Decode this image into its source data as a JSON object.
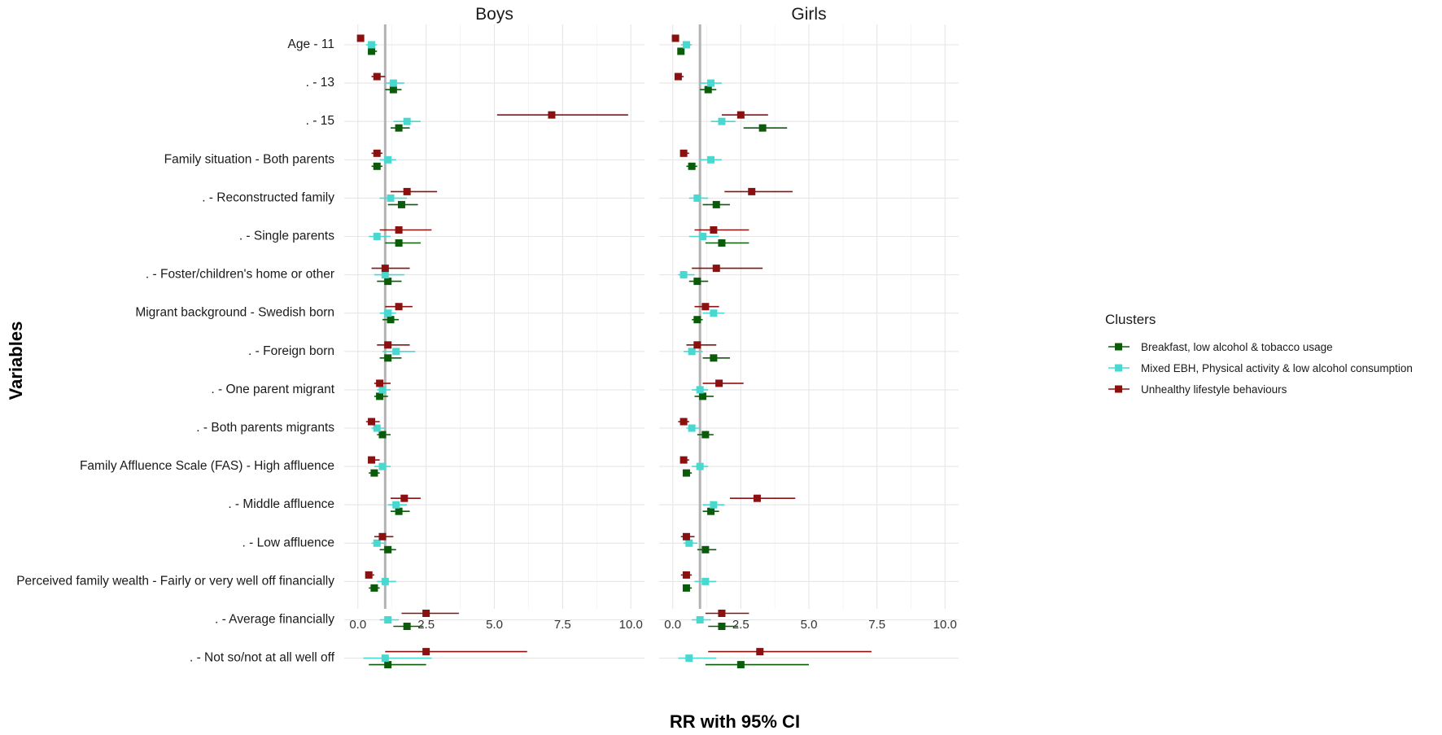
{
  "chart_data": {
    "type": "forest",
    "xlabel": "RR with 95% CI",
    "ylabel": "Variables",
    "xlim": [
      -0.5,
      10.5
    ],
    "xticks": [
      0.0,
      2.5,
      5.0,
      7.5,
      10.0
    ],
    "xtick_labels": [
      "0.0",
      "2.5",
      "5.0",
      "7.5",
      "10.0"
    ],
    "reference_line": 1,
    "grid": true,
    "legend_position": "right",
    "legend_title": "Clusters",
    "series": [
      {
        "key": "breakfast",
        "name": "Breakfast, low alcohol & tobacco usage",
        "color": "#0a5c0a"
      },
      {
        "key": "mixed",
        "name": "Mixed EBH, Physical activity & low alcohol consumption",
        "color": "#48d8d0"
      },
      {
        "key": "unhealthy",
        "name": "Unhealthy lifestyle behaviours",
        "color": "#8b1010"
      }
    ],
    "rows": [
      {
        "label": "Age  -  11"
      },
      {
        "label": ".  -  13"
      },
      {
        "label": ".  -  15"
      },
      {
        "label": "Family situation  -  Both parents"
      },
      {
        "label": ".  -  Reconstructed family"
      },
      {
        "label": ".  -  Single parents"
      },
      {
        "label": ".  -  Foster/children's home or other"
      },
      {
        "label": "Migrant background  -  Swedish born"
      },
      {
        "label": ".  -  Foreign born"
      },
      {
        "label": ".  -  One parent migrant"
      },
      {
        "label": ".  -  Both parents migrants"
      },
      {
        "label": "Family  Affluence Scale (FAS)  -  High affluence"
      },
      {
        "label": ".  -  Middle affluence"
      },
      {
        "label": ".  -  Low affluence"
      },
      {
        "label": "Perceived family wealth  -  Fairly or very well off financially"
      },
      {
        "label": ".  -  Average financially"
      },
      {
        "label": ".  -  Not  so/not at all well off"
      }
    ],
    "panels": [
      {
        "title": "Boys",
        "estimates": {
          "unhealthy": [
            [
              0.1,
              0.0,
              0.2
            ],
            [
              0.7,
              0.5,
              1.0
            ],
            [
              7.1,
              5.1,
              9.9
            ],
            [
              0.7,
              0.5,
              0.9
            ],
            [
              1.8,
              1.2,
              2.9
            ],
            [
              1.5,
              0.8,
              2.7
            ],
            [
              1.0,
              0.5,
              1.9
            ],
            [
              1.5,
              1.0,
              2.0
            ],
            [
              1.1,
              0.7,
              1.9
            ],
            [
              0.8,
              0.6,
              1.2
            ],
            [
              0.5,
              0.3,
              0.8
            ],
            [
              0.5,
              0.4,
              0.8
            ],
            [
              1.7,
              1.2,
              2.3
            ],
            [
              0.9,
              0.6,
              1.3
            ],
            [
              0.4,
              0.3,
              0.6
            ],
            [
              2.5,
              1.6,
              3.7
            ],
            [
              2.5,
              1.0,
              6.2
            ]
          ],
          "mixed": [
            [
              0.5,
              0.3,
              0.7
            ],
            [
              1.3,
              1.0,
              1.7
            ],
            [
              1.8,
              1.3,
              2.3
            ],
            [
              1.1,
              0.8,
              1.4
            ],
            [
              1.2,
              0.8,
              1.8
            ],
            [
              0.7,
              0.4,
              1.2
            ],
            [
              1.0,
              0.6,
              1.7
            ],
            [
              1.1,
              0.8,
              1.4
            ],
            [
              1.4,
              0.9,
              2.1
            ],
            [
              0.9,
              0.7,
              1.2
            ],
            [
              0.7,
              0.5,
              1.0
            ],
            [
              0.9,
              0.6,
              1.2
            ],
            [
              1.4,
              1.1,
              1.8
            ],
            [
              0.7,
              0.5,
              1.0
            ],
            [
              1.0,
              0.7,
              1.4
            ],
            [
              1.1,
              0.8,
              1.5
            ],
            [
              1.0,
              0.2,
              2.7
            ]
          ],
          "breakfast": [
            [
              0.5,
              0.4,
              0.7
            ],
            [
              1.3,
              1.0,
              1.6
            ],
            [
              1.5,
              1.2,
              1.9
            ],
            [
              0.7,
              0.5,
              0.9
            ],
            [
              1.6,
              1.1,
              2.2
            ],
            [
              1.5,
              1.0,
              2.3
            ],
            [
              1.1,
              0.7,
              1.6
            ],
            [
              1.2,
              0.9,
              1.5
            ],
            [
              1.1,
              0.8,
              1.6
            ],
            [
              0.8,
              0.6,
              1.1
            ],
            [
              0.9,
              0.7,
              1.2
            ],
            [
              0.6,
              0.4,
              0.8
            ],
            [
              1.5,
              1.2,
              1.9
            ],
            [
              1.1,
              0.8,
              1.4
            ],
            [
              0.6,
              0.4,
              0.8
            ],
            [
              1.8,
              1.3,
              2.4
            ],
            [
              1.1,
              0.4,
              2.5
            ]
          ]
        }
      },
      {
        "title": "Girls",
        "estimates": {
          "unhealthy": [
            [
              0.1,
              0.0,
              0.2
            ],
            [
              0.2,
              0.1,
              0.4
            ],
            [
              2.5,
              1.8,
              3.5
            ],
            [
              0.4,
              0.3,
              0.6
            ],
            [
              2.9,
              1.9,
              4.4
            ],
            [
              1.5,
              0.8,
              2.8
            ],
            [
              1.6,
              0.7,
              3.3
            ],
            [
              1.2,
              0.8,
              1.7
            ],
            [
              0.9,
              0.5,
              1.6
            ],
            [
              1.7,
              1.1,
              2.6
            ],
            [
              0.4,
              0.2,
              0.6
            ],
            [
              0.4,
              0.3,
              0.6
            ],
            [
              3.1,
              2.1,
              4.5
            ],
            [
              0.5,
              0.3,
              0.8
            ],
            [
              0.5,
              0.3,
              0.7
            ],
            [
              1.8,
              1.2,
              2.8
            ],
            [
              3.2,
              1.3,
              7.3
            ]
          ],
          "mixed": [
            [
              0.5,
              0.3,
              0.7
            ],
            [
              1.4,
              1.0,
              1.8
            ],
            [
              1.8,
              1.4,
              2.3
            ],
            [
              1.4,
              1.0,
              1.8
            ],
            [
              0.9,
              0.6,
              1.3
            ],
            [
              1.1,
              0.6,
              1.7
            ],
            [
              0.4,
              0.2,
              0.8
            ],
            [
              1.5,
              1.1,
              1.9
            ],
            [
              0.7,
              0.4,
              1.1
            ],
            [
              1.0,
              0.7,
              1.3
            ],
            [
              0.7,
              0.5,
              1.0
            ],
            [
              1.0,
              0.7,
              1.3
            ],
            [
              1.5,
              1.1,
              1.9
            ],
            [
              0.6,
              0.4,
              0.9
            ],
            [
              1.2,
              0.8,
              1.6
            ],
            [
              1.0,
              0.7,
              1.4
            ],
            [
              0.6,
              0.2,
              1.6
            ]
          ],
          "breakfast": [
            [
              0.3,
              0.2,
              0.4
            ],
            [
              1.3,
              1.0,
              1.6
            ],
            [
              3.3,
              2.6,
              4.2
            ],
            [
              0.7,
              0.5,
              0.9
            ],
            [
              1.6,
              1.1,
              2.1
            ],
            [
              1.8,
              1.2,
              2.8
            ],
            [
              0.9,
              0.6,
              1.3
            ],
            [
              0.9,
              0.7,
              1.1
            ],
            [
              1.5,
              1.1,
              2.1
            ],
            [
              1.1,
              0.8,
              1.5
            ],
            [
              1.2,
              0.9,
              1.5
            ],
            [
              0.5,
              0.4,
              0.7
            ],
            [
              1.4,
              1.1,
              1.7
            ],
            [
              1.2,
              0.9,
              1.6
            ],
            [
              0.5,
              0.4,
              0.7
            ],
            [
              1.8,
              1.3,
              2.4
            ],
            [
              2.5,
              1.2,
              5.0
            ]
          ]
        }
      }
    ]
  }
}
